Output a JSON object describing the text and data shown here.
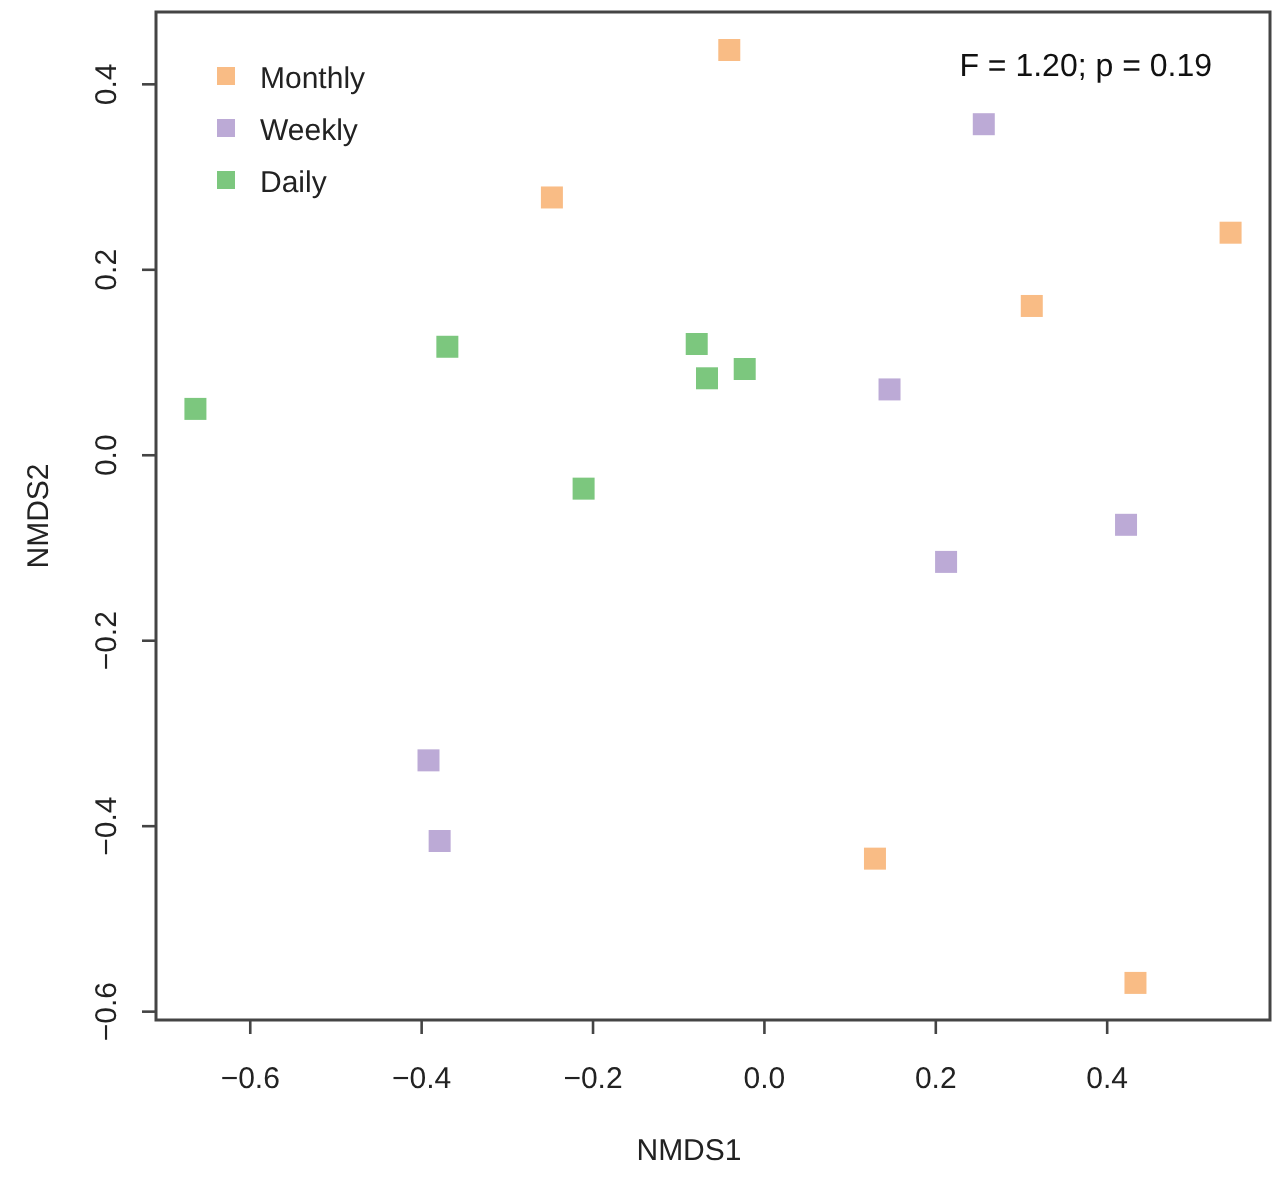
{
  "chart_data": {
    "type": "scatter",
    "xlabel": "NMDS1",
    "ylabel": "NMDS2",
    "xlim": [
      -0.71,
      0.59
    ],
    "ylim": [
      -0.609,
      0.478
    ],
    "xticks": [
      {
        "value": -0.6,
        "label": "−0.6"
      },
      {
        "value": -0.4,
        "label": "−0.4"
      },
      {
        "value": -0.2,
        "label": "−0.2"
      },
      {
        "value": 0,
        "label": "0.0"
      },
      {
        "value": 0.2,
        "label": "0.2"
      },
      {
        "value": 0.4,
        "label": "0.4"
      }
    ],
    "yticks": [
      {
        "value": -0.6,
        "label": "−0.6"
      },
      {
        "value": -0.4,
        "label": "−0.4"
      },
      {
        "value": -0.2,
        "label": "−0.2"
      },
      {
        "value": 0,
        "label": "0.0"
      },
      {
        "value": 0.2,
        "label": "0.2"
      },
      {
        "value": 0.4,
        "label": "0.4"
      }
    ],
    "marker": "square",
    "legend": "top left",
    "grid": false,
    "annotations": [
      "F = 1.20; p = 0.19"
    ],
    "series": [
      {
        "name": "Monthly",
        "color": "#f9bc85",
        "x": [
          -0.041,
          -0.248,
          0.312,
          0.544,
          0.129,
          0.433
        ],
        "values": [
          0.437,
          0.278,
          0.161,
          0.24,
          -0.435,
          -0.569
        ]
      },
      {
        "name": "Weekly",
        "color": "#bcaad6",
        "x": [
          0.256,
          0.146,
          0.422,
          0.212,
          -0.392,
          -0.379
        ],
        "values": [
          0.357,
          0.071,
          -0.075,
          -0.115,
          -0.329,
          -0.416
        ]
      },
      {
        "name": "Daily",
        "color": "#7cc77e",
        "x": [
          -0.664,
          -0.37,
          -0.079,
          -0.067,
          -0.023,
          -0.211
        ],
        "values": [
          0.05,
          0.117,
          0.12,
          0.083,
          0.093,
          -0.036
        ]
      }
    ]
  }
}
